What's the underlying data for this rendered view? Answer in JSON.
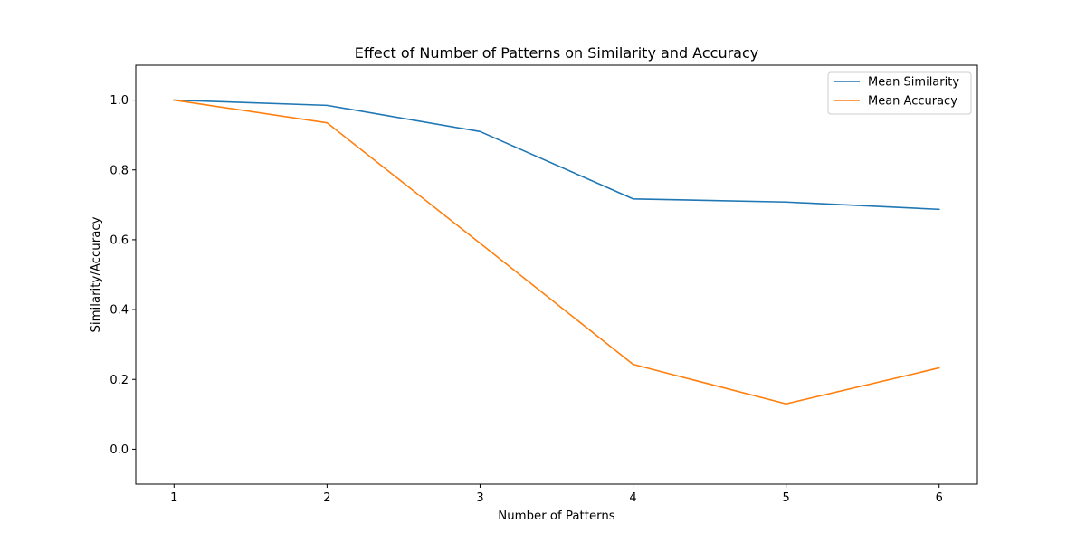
{
  "chart_data": {
    "type": "line",
    "title": "Effect of Number of Patterns on Similarity and Accuracy",
    "xlabel": "Number of Patterns",
    "ylabel": "Similarity/Accuracy",
    "x": [
      1,
      2,
      3,
      4,
      5,
      6
    ],
    "xlim": [
      0.75,
      6.25
    ],
    "ylim": [
      -0.1,
      1.1
    ],
    "xticks": [
      "1",
      "2",
      "3",
      "4",
      "5",
      "6"
    ],
    "yticks": [
      "0.0",
      "0.2",
      "0.4",
      "0.6",
      "0.8",
      "1.0"
    ],
    "grid": false,
    "legend_position": "top-right",
    "series": [
      {
        "name": "Mean Similarity",
        "color": "#1f77b4",
        "values": [
          1.0,
          0.985,
          0.91,
          0.717,
          0.708,
          0.687
        ]
      },
      {
        "name": "Mean Accuracy",
        "color": "#ff7f0e",
        "values": [
          1.0,
          0.935,
          0.59,
          0.243,
          0.13,
          0.233
        ]
      }
    ]
  }
}
